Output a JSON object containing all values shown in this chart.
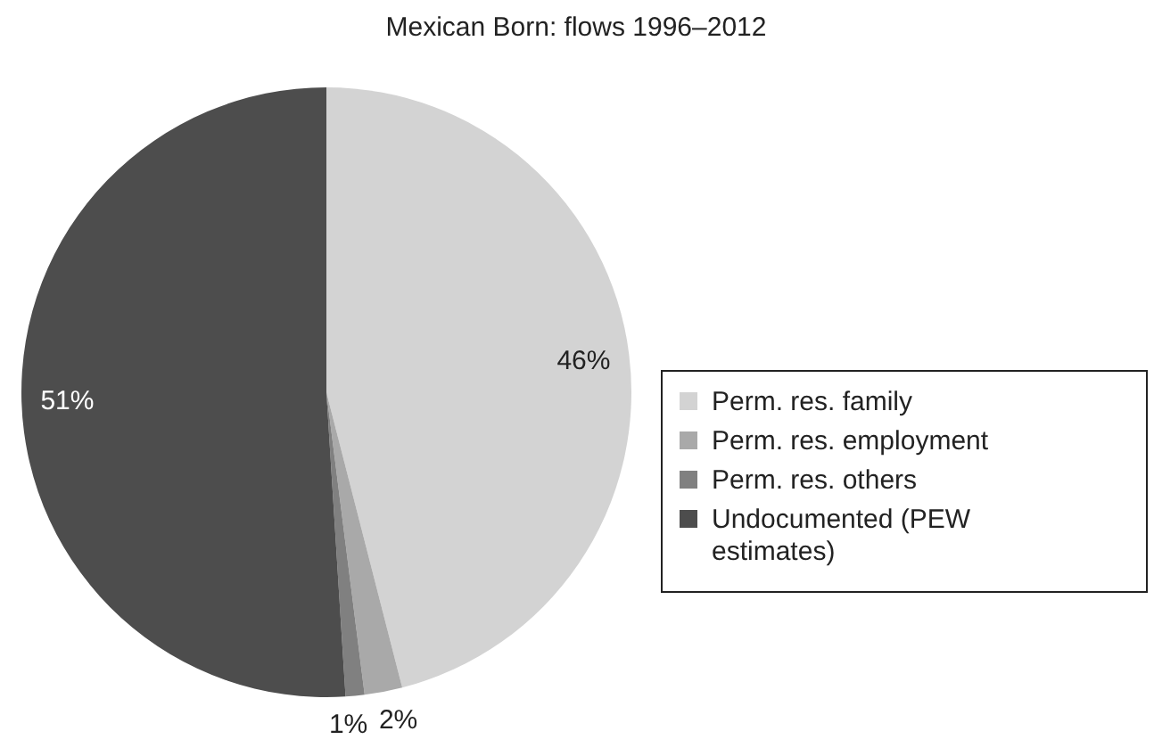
{
  "chart_data": {
    "type": "pie",
    "title": "Mexican Born: flows 1996–2012",
    "categories": [
      "Perm. res. family",
      "Perm. res. employment",
      "Perm. res. others",
      "Undocumented (PEW estimates)"
    ],
    "values": [
      46,
      2,
      1,
      51
    ],
    "colors": [
      "#d3d3d3",
      "#a9a9a9",
      "#808080",
      "#4d4d4d"
    ],
    "value_labels": [
      "46%",
      "2%",
      "1%",
      "51%"
    ],
    "legend": "right"
  }
}
